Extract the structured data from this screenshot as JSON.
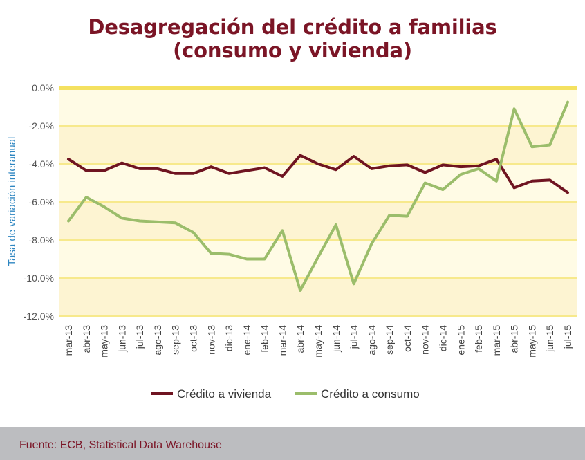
{
  "chart_data": {
    "type": "line",
    "title_line1": "Desagregación del crédito a familias",
    "title_line2": "(consumo y vivienda)",
    "xlabel": "",
    "ylabel": "Tasa de variación interanual",
    "ylim": [
      -12,
      0
    ],
    "yticks": [
      0,
      -2,
      -4,
      -6,
      -8,
      -10,
      -12
    ],
    "ytick_labels": [
      "0.0%",
      "-2.0%",
      "-4.0%",
      "-6.0%",
      "-8.0%",
      "-10.0%",
      "-12.0%"
    ],
    "categories": [
      "mar-13",
      "abr-13",
      "may-13",
      "jun-13",
      "jul-13",
      "ago-13",
      "sep-13",
      "oct-13",
      "nov-13",
      "dic-13",
      "ene-14",
      "feb-14",
      "mar-14",
      "abr-14",
      "may-14",
      "jun-14",
      "jul-14",
      "ago-14",
      "sep-14",
      "oct-14",
      "nov-14",
      "dic-14",
      "ene-15",
      "feb-15",
      "mar-15",
      "abr-15",
      "may-15",
      "jun-15",
      "jul-15"
    ],
    "series": [
      {
        "name": "Crédito a vivienda",
        "color": "#6f1421",
        "values": [
          -3.75,
          -4.35,
          -4.35,
          -3.95,
          -4.25,
          -4.25,
          -4.5,
          -4.5,
          -4.15,
          -4.5,
          -4.35,
          -4.2,
          -4.65,
          -3.55,
          -4.0,
          -4.3,
          -3.6,
          -4.25,
          -4.1,
          -4.05,
          -4.45,
          -4.05,
          -4.15,
          -4.1,
          -3.75,
          -5.25,
          -4.9,
          -4.85,
          -5.5
        ]
      },
      {
        "name": "Crédito a consumo",
        "color": "#9bbd6b",
        "values": [
          -7.0,
          -5.75,
          -6.25,
          -6.85,
          -7.0,
          -7.05,
          -7.1,
          -7.6,
          -8.7,
          -8.75,
          -9.0,
          -9.0,
          -7.5,
          -10.65,
          -8.9,
          -7.2,
          -10.3,
          -8.2,
          -6.7,
          -6.75,
          -5.0,
          -5.35,
          -4.55,
          -4.25,
          -4.9,
          -1.1,
          -3.1,
          -3.0,
          -0.75
        ]
      }
    ],
    "legend_position": "bottom-center",
    "band_colors": [
      "#fffbe5",
      "#fdf4d2"
    ],
    "gridline_color": "#f7e98c",
    "zero_line_color": "#f4e160"
  },
  "footer": {
    "source": "Fuente: ECB, Statistical Data Warehouse"
  }
}
